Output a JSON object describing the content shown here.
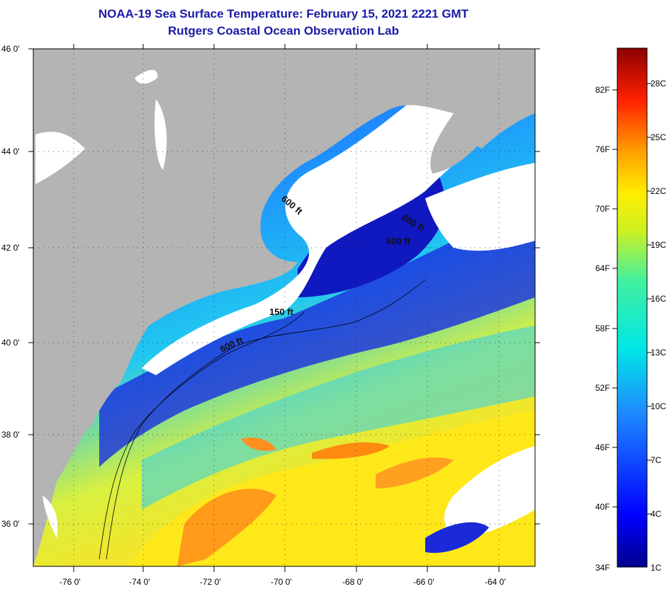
{
  "title": {
    "line1": "NOAA-19 Sea Surface Temperature:  February 15, 2021 2221 GMT",
    "line2": "Rutgers Coastal Ocean Observation Lab"
  },
  "map": {
    "lat_labels": [
      "46 0'",
      "44 0'",
      "42 0'",
      "40 0'",
      "38 0'",
      "36 0'"
    ],
    "lon_labels": [
      "-76 0'",
      "-74 0'",
      "-72 0'",
      "-70 0'",
      "-68 0'",
      "-66 0'",
      "-64 0'"
    ],
    "contour_labels": [
      {
        "text": "600 ft",
        "rotate": 40
      },
      {
        "text": "600 ft",
        "rotate": 30
      },
      {
        "text": "600 ft",
        "rotate": 0
      },
      {
        "text": "150 ft",
        "rotate": 0
      },
      {
        "text": "600 ft",
        "rotate": -25
      }
    ],
    "colors": {
      "land": "#b4b4b4",
      "cloud": "#ffffff",
      "cold": "#1010c8",
      "mid": "#1e8cff",
      "cyan": "#00e0e8",
      "warm_yellow": "#ffee10",
      "warm_orange": "#ff9a1a"
    }
  },
  "colorbar": {
    "fahrenheit_labels": [
      "82F",
      "76F",
      "70F",
      "64F",
      "58F",
      "52F",
      "46F",
      "40F",
      "34F"
    ],
    "celsius_labels": [
      "28C",
      "25C",
      "22C",
      "19C",
      "16C",
      "13C",
      "10C",
      "7C",
      "4C",
      "1C"
    ]
  }
}
